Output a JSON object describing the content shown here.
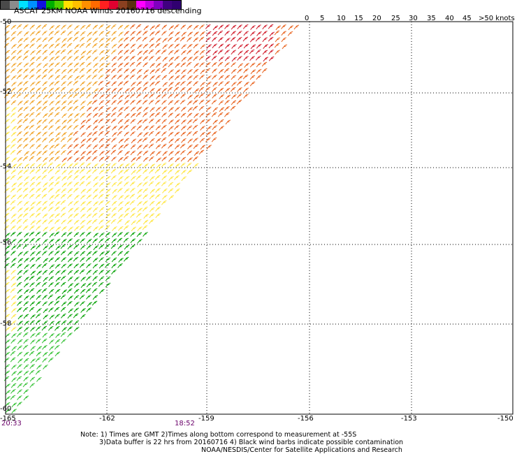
{
  "title": "ASCAT 25KM NOAA Winds 20160716 descending",
  "legend": {
    "ticks": [
      "0",
      "5",
      "10",
      "15",
      "20",
      "25",
      "30",
      "35",
      "40",
      "45",
      ">50 knots"
    ],
    "colors": [
      "#4a4a4a",
      "#8c8c8c",
      "#00e0ff",
      "#0090ff",
      "#1010e0",
      "#00b000",
      "#50d000",
      "#ffe000",
      "#ffc000",
      "#ff9000",
      "#ff6a00",
      "#ff2020",
      "#e00030",
      "#8a4020",
      "#5a3010",
      "#ff00ff",
      "#c000e0",
      "#8000c0",
      "#400080",
      "#300070"
    ]
  },
  "map": {
    "lat_labels": [
      "-50",
      "-52",
      "-54",
      "-56",
      "-58",
      "-60"
    ],
    "lon_labels": [
      "-165",
      "-162",
      "-159",
      "-156",
      "-153",
      "-150"
    ],
    "times": [
      "20:33",
      "18:52"
    ],
    "speed_colors": {
      "band_35": "#d01828",
      "band_30": "#e8601a",
      "band_25": "#f0a020",
      "band_20": "#ffe640",
      "band_15": "#00a000",
      "band_10": "#30c030"
    }
  },
  "notes": {
    "line1": "Note: 1) Times are GMT 2)Times along bottom correspond to measurement at -55S",
    "line2": "3)Data buffer is 22 hrs from 20160716 4) Black wind barbs indicate possible contamination",
    "line3": "NOAA/NESDIS/Center for Satellite Applications and Research"
  }
}
